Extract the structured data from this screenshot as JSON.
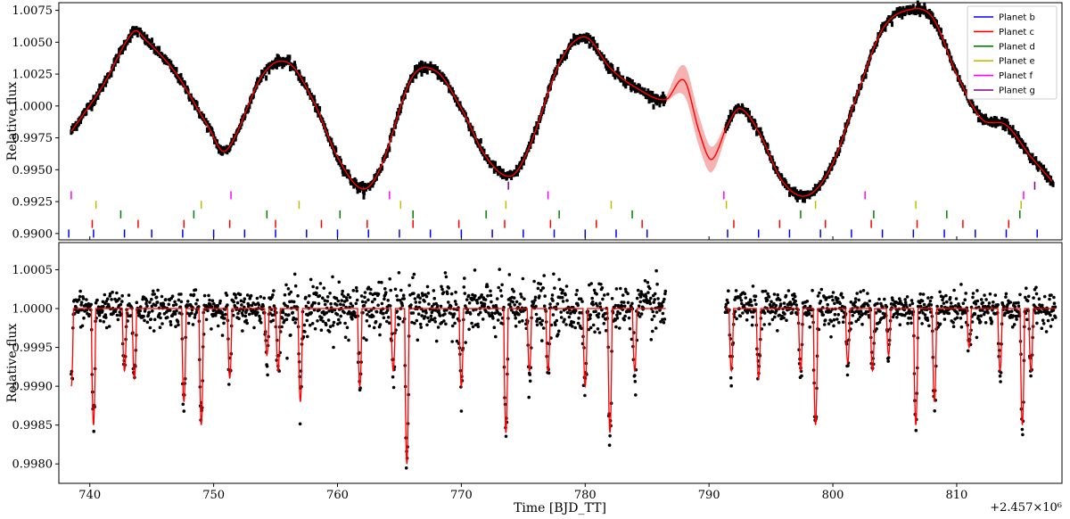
{
  "chart_data": [
    {
      "type": "line",
      "panel": "top",
      "ylabel": "Relative flux",
      "xlim": [
        737.5,
        818.5
      ],
      "ylim": [
        0.9895,
        1.0081
      ],
      "yticks": [
        "0.9900",
        "0.9925",
        "0.9950",
        "0.9975",
        "1.0000",
        "1.0025",
        "1.0050",
        "1.0075"
      ],
      "legend_position": "top-right",
      "series": [
        {
          "name": "Data",
          "kind": "scatter",
          "color": "#000000",
          "x": [
            738.5,
            741,
            743.5,
            744.5,
            747,
            749.5,
            751,
            754,
            756,
            758,
            760,
            762,
            763.5,
            766,
            768,
            770,
            772,
            774,
            775.5,
            778,
            780,
            782,
            784,
            786.5,
            791.5,
            792.5,
            794,
            796,
            798,
            800,
            802,
            804,
            806,
            808,
            810,
            812,
            814,
            816,
            817.8
          ],
          "y": [
            0.998,
            1.0015,
            1.0058,
            1.0052,
            1.0025,
            0.9985,
            0.9965,
            1.0025,
            1.0034,
            1.0005,
            0.996,
            0.9935,
            0.9952,
            1.0022,
            1.0027,
            0.9998,
            0.996,
            0.9945,
            0.9968,
            1.0035,
            1.0054,
            1.003,
            1.0015,
            1.0005,
            0.9985,
            0.9998,
            0.998,
            0.994,
            0.993,
            0.9955,
            1.001,
            1.006,
            1.0075,
            1.007,
            1.0025,
            0.999,
            0.9985,
            0.996,
            0.994
          ]
        },
        {
          "name": "Model",
          "kind": "line",
          "color": "#ff0000",
          "x": [
            738.5,
            741,
            743.5,
            744.5,
            747,
            749.5,
            751,
            754,
            756,
            758,
            760,
            762,
            763.5,
            766,
            768,
            770,
            772,
            774,
            775.5,
            778,
            780,
            782,
            784,
            786.5,
            788,
            789.2,
            790.2,
            791.5,
            792.5,
            794,
            796,
            798,
            800,
            802,
            804,
            806,
            808,
            810,
            812,
            814,
            816,
            817.8
          ],
          "y": [
            0.998,
            1.0015,
            1.0058,
            1.0052,
            1.0025,
            0.9985,
            0.9965,
            1.0025,
            1.0034,
            1.0005,
            0.996,
            0.9935,
            0.9952,
            1.0022,
            1.0027,
            0.9998,
            0.996,
            0.9945,
            0.9968,
            1.0035,
            1.0054,
            1.003,
            1.0015,
            1.0005,
            1.002,
            0.998,
            0.9958,
            0.9985,
            0.9998,
            0.998,
            0.994,
            0.993,
            0.9955,
            1.001,
            1.006,
            1.0075,
            1.007,
            1.0025,
            0.999,
            0.9985,
            0.996,
            0.994
          ]
        },
        {
          "name": "Model uncertainty",
          "kind": "band",
          "color": "#f4a3a3",
          "x": [
            786.5,
            788,
            789.2,
            790.2,
            791.5
          ],
          "y_low": [
            1.0003,
            1.0008,
            0.9968,
            0.9948,
            0.998
          ],
          "y_high": [
            1.0007,
            1.0032,
            0.9992,
            0.9968,
            0.999
          ]
        }
      ],
      "transit_markers": [
        {
          "name": "Planet b",
          "color": "#0000ff",
          "level": 0.99,
          "x": [
            738.3,
            740.3,
            742.8,
            745.0,
            747.5,
            750.0,
            752.5,
            755.0,
            757.5,
            760.0,
            762.5,
            765.0,
            767.5,
            770.0,
            772.5,
            775.0,
            777.5,
            780.0,
            782.5,
            785.0,
            791.5,
            794.0,
            796.5,
            799.0,
            801.5,
            804.0,
            806.5,
            809.0,
            811.5,
            814.0,
            816.5
          ]
        },
        {
          "name": "Planet c",
          "color": "#ff0000",
          "level": 0.99075,
          "x": [
            740.2,
            743.9,
            747.6,
            751.3,
            755.0,
            758.7,
            762.4,
            766.1,
            769.8,
            773.5,
            777.2,
            780.9,
            784.6,
            792.0,
            795.7,
            799.4,
            803.1,
            806.8,
            810.5,
            814.2
          ]
        },
        {
          "name": "Planet d",
          "color": "#008000",
          "level": 0.9915,
          "x": [
            742.5,
            748.4,
            754.3,
            760.2,
            766.1,
            772.0,
            777.9,
            783.8,
            797.4,
            803.3,
            809.2,
            815.1
          ]
        },
        {
          "name": "Planet e",
          "color": "#bfbf00",
          "level": 0.99225,
          "x": [
            740.5,
            749.0,
            756.9,
            765.1,
            773.6,
            782.1,
            791.4,
            798.6,
            806.7,
            815.2
          ]
        },
        {
          "name": "Planet f",
          "color": "#ff00ff",
          "level": 0.993,
          "x": [
            738.5,
            751.4,
            764.2,
            777.0,
            791.2,
            802.6,
            815.4
          ]
        },
        {
          "name": "Planet g",
          "color": "#800080",
          "level": 0.99375,
          "x": [
            773.8,
            816.3
          ]
        }
      ]
    },
    {
      "type": "scatter",
      "panel": "bottom",
      "ylabel": "Relative flux",
      "xlabel": "Time [BJD_TT]",
      "xlim": [
        737.5,
        818.5
      ],
      "ylim": [
        0.99775,
        1.00085
      ],
      "xticks": [
        740,
        750,
        760,
        770,
        780,
        790,
        800,
        810
      ],
      "yticks": [
        "0.9980",
        "0.9985",
        "0.9990",
        "0.9995",
        "1.0000",
        "1.0005"
      ],
      "x_offset_text": "+2.457×10⁶",
      "baseline": 1.0,
      "data_gap": [
        786.5,
        791.3
      ],
      "series": [
        {
          "name": "Detrended data",
          "kind": "scatter",
          "color": "#000000"
        },
        {
          "name": "Transit model",
          "kind": "line",
          "color": "#ff0000",
          "dips": [
            {
              "x": 738.5,
              "depth": 0.001
            },
            {
              "x": 740.3,
              "depth": 0.0015
            },
            {
              "x": 742.8,
              "depth": 0.0008
            },
            {
              "x": 743.6,
              "depth": 0.0009
            },
            {
              "x": 747.6,
              "depth": 0.0012
            },
            {
              "x": 749.0,
              "depth": 0.0015
            },
            {
              "x": 751.3,
              "depth": 0.0009
            },
            {
              "x": 754.3,
              "depth": 0.0006
            },
            {
              "x": 755.2,
              "depth": 0.0008
            },
            {
              "x": 757.0,
              "depth": 0.0012
            },
            {
              "x": 761.8,
              "depth": 0.001
            },
            {
              "x": 764.5,
              "depth": 0.0008
            },
            {
              "x": 765.6,
              "depth": 0.002
            },
            {
              "x": 770.0,
              "depth": 0.001
            },
            {
              "x": 773.6,
              "depth": 0.0016
            },
            {
              "x": 775.5,
              "depth": 0.0008
            },
            {
              "x": 777.0,
              "depth": 0.0008
            },
            {
              "x": 780.0,
              "depth": 0.001
            },
            {
              "x": 782.0,
              "depth": 0.0016
            },
            {
              "x": 784.0,
              "depth": 0.0008
            },
            {
              "x": 791.8,
              "depth": 0.0008
            },
            {
              "x": 794.0,
              "depth": 0.0009
            },
            {
              "x": 797.4,
              "depth": 0.0008
            },
            {
              "x": 798.6,
              "depth": 0.0015
            },
            {
              "x": 801.2,
              "depth": 0.0007
            },
            {
              "x": 803.2,
              "depth": 0.0008
            },
            {
              "x": 804.5,
              "depth": 0.0006
            },
            {
              "x": 806.7,
              "depth": 0.0015
            },
            {
              "x": 808.2,
              "depth": 0.0012
            },
            {
              "x": 811.0,
              "depth": 0.0005
            },
            {
              "x": 813.5,
              "depth": 0.0008
            },
            {
              "x": 815.3,
              "depth": 0.0015
            },
            {
              "x": 816.0,
              "depth": 0.0008
            }
          ]
        }
      ]
    }
  ],
  "legend": {
    "entries": [
      {
        "label": "Planet b",
        "color": "#0000ff"
      },
      {
        "label": "Planet c",
        "color": "#ff0000"
      },
      {
        "label": "Planet d",
        "color": "#008000"
      },
      {
        "label": "Planet e",
        "color": "#bfbf00"
      },
      {
        "label": "Planet f",
        "color": "#ff00ff"
      },
      {
        "label": "Planet g",
        "color": "#800080"
      }
    ]
  }
}
